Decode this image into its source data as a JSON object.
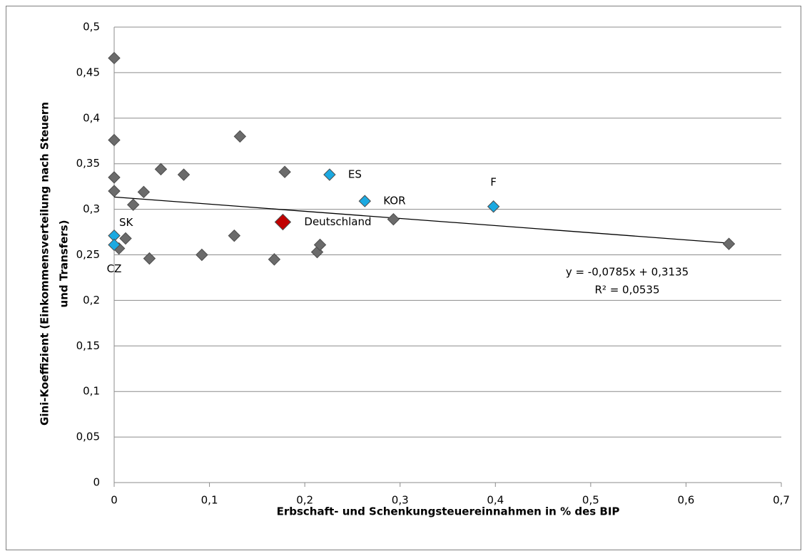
{
  "chart_data": {
    "type": "scatter",
    "xlabel": "Erbschaft- und Schenkungsteuereinnahmen in % des BIP",
    "ylabel": [
      "Gini-Koeffizient (Einkommensverteilung nach Steuern",
      "und Transfers)"
    ],
    "xlim": [
      0,
      0.7
    ],
    "xticks": [
      0,
      {
        "value": 0.1,
        "label": "0,1"
      },
      {
        "value": 0.2,
        "label": "0,2"
      },
      {
        "value": 0.3,
        "label": "0,3"
      },
      {
        "value": 0.4,
        "label": "0,4"
      },
      {
        "value": 0.5,
        "label": "0,5"
      },
      {
        "value": 0.6,
        "label": "0,6"
      },
      {
        "value": 0.7,
        "label": "0,7"
      }
    ],
    "ylim": [
      0,
      0.5
    ],
    "yticks": [
      0,
      {
        "value": 0.05,
        "label": "0,05"
      },
      {
        "value": 0.1,
        "label": "0,1"
      },
      {
        "value": 0.15,
        "label": "0,15"
      },
      {
        "value": 0.2,
        "label": "0,2"
      },
      {
        "value": 0.25,
        "label": "0,25"
      },
      {
        "value": 0.3,
        "label": "0,3"
      },
      {
        "value": 0.35,
        "label": "0,35"
      },
      {
        "value": 0.4,
        "label": "0,4"
      },
      {
        "value": 0.45,
        "label": "0,45"
      },
      {
        "value": 0.5,
        "label": "0,5"
      }
    ],
    "grid": true,
    "series": [
      {
        "color": "#6b6b6b",
        "x": [
          0,
          0,
          0,
          0,
          0.132,
          0.049,
          0.073,
          0.031,
          0.02,
          0.012,
          0.005,
          0.037,
          0.092,
          0.126,
          0.168,
          0.179,
          0.213,
          0.216,
          0.293,
          0.645
        ],
        "values": [
          0.466,
          0.376,
          0.335,
          0.32,
          0.38,
          0.344,
          0.338,
          0.319,
          0.305,
          0.268,
          0.257,
          0.246,
          0.25,
          0.271,
          0.245,
          0.341,
          0.253,
          0.261,
          0.289,
          0.262
        ]
      },
      {
        "color": "#1ba9e1",
        "x": [
          0.226,
          0.263,
          0.398,
          0,
          0
        ],
        "values": [
          0.338,
          0.309,
          0.303,
          0.271,
          0.261
        ],
        "point_labels": [
          "ES",
          "KOR",
          "F",
          "SK",
          "CZ"
        ]
      },
      {
        "color": "#c00000",
        "x": [
          0.177
        ],
        "values": [
          0.286
        ],
        "point_labels": [
          "Deutschland"
        ]
      }
    ],
    "trendline": {
      "slope": -0.0785,
      "intercept": 0.3135,
      "equation": "y = -0,0785x + 0,3135",
      "r2": "R² = 0,0535"
    }
  }
}
